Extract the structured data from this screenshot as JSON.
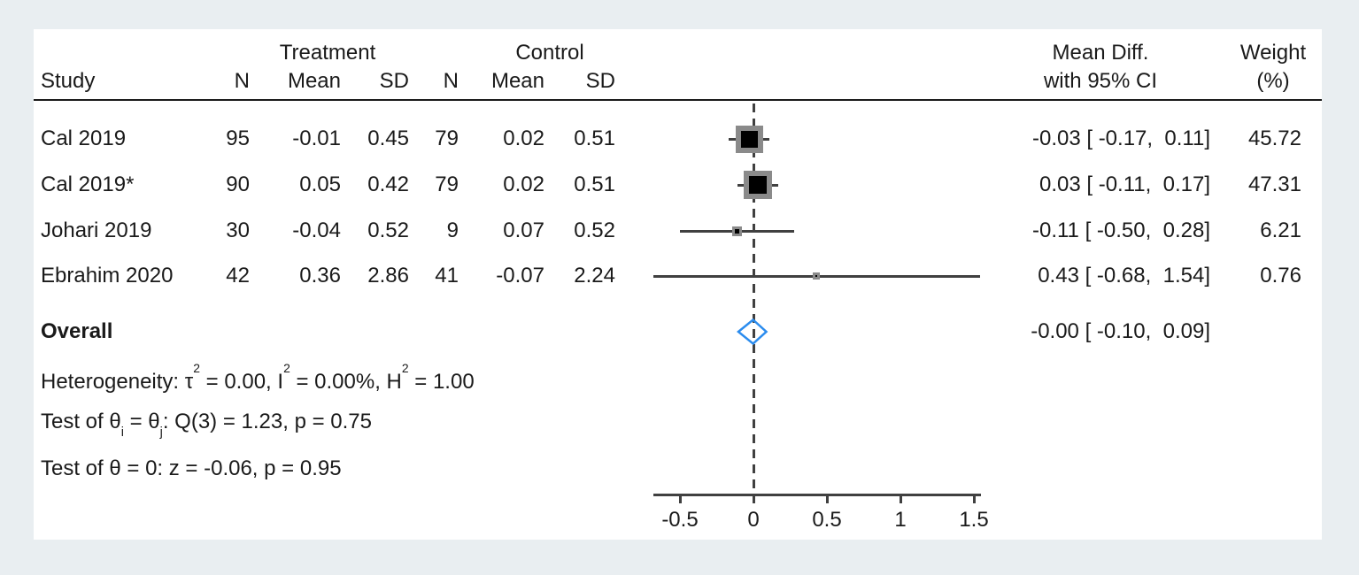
{
  "colors": {
    "background": "#e9eef1",
    "panel": "#ffffff",
    "text": "#1a1a1a",
    "line": "#404040",
    "marker": "#8a8a8a",
    "marker_core": "#000000",
    "diamond": "#2b8cee"
  },
  "header": {
    "study": "Study",
    "treatment": "Treatment",
    "control": "Control",
    "col_n": "N",
    "col_mean": "Mean",
    "col_sd": "SD",
    "effect_l1": "Mean Diff.",
    "effect_l2": "with 95% CI",
    "weight_l1": "Weight",
    "weight_l2": "(%)"
  },
  "stats": {
    "het_p1": "Heterogeneity: τ",
    "het_s1": "2",
    "het_p2": " = 0.00, I",
    "het_s2": "2",
    "het_p3": " = 0.00%, H",
    "het_s3": "2",
    "het_p4": " = 1.00",
    "t1_p1": "Test of θ",
    "t1_s1": "i",
    "t1_p2": " = θ",
    "t1_s2": "j",
    "t1_p3": ": Q(3) = 1.23, p = 0.75",
    "t2": "Test of θ = 0: z = -0.06, p = 0.95"
  },
  "chart_data": {
    "type": "forest",
    "effect_label": "Mean Diff.",
    "x_axis": {
      "ticks": [
        -0.5,
        0,
        0.5,
        1,
        1.5
      ],
      "tick_labels": [
        "-0.5",
        "0",
        "0.5",
        "1",
        "1.5"
      ],
      "range": [
        -0.68,
        1.55
      ],
      "ref_line": 0
    },
    "studies": [
      {
        "name": "Cal 2019",
        "t_n": "95",
        "t_mean": "-0.01",
        "t_sd": "0.45",
        "c_n": "79",
        "c_mean": "0.02",
        "c_sd": "0.51",
        "effect": -0.03,
        "ci": [
          -0.17,
          0.11
        ],
        "ci_text": "-0.03 [ -0.17,  0.11]",
        "weight": 45.72,
        "weight_text": "45.72"
      },
      {
        "name": "Cal 2019*",
        "t_n": "90",
        "t_mean": "0.05",
        "t_sd": "0.42",
        "c_n": "79",
        "c_mean": "0.02",
        "c_sd": "0.51",
        "effect": 0.03,
        "ci": [
          -0.11,
          0.17
        ],
        "ci_text": " 0.03 [ -0.11,  0.17]",
        "weight": 47.31,
        "weight_text": "47.31"
      },
      {
        "name": "Johari 2019",
        "t_n": "30",
        "t_mean": "-0.04",
        "t_sd": "0.52",
        "c_n": "9",
        "c_mean": "0.07",
        "c_sd": "0.52",
        "effect": -0.11,
        "ci": [
          -0.5,
          0.28
        ],
        "ci_text": "-0.11 [ -0.50,  0.28]",
        "weight": 6.21,
        "weight_text": "6.21"
      },
      {
        "name": "Ebrahim 2020",
        "t_n": "42",
        "t_mean": "0.36",
        "t_sd": "2.86",
        "c_n": "41",
        "c_mean": "-0.07",
        "c_sd": "2.24",
        "effect": 0.43,
        "ci": [
          -0.68,
          1.54
        ],
        "ci_text": " 0.43 [ -0.68,  1.54]",
        "weight": 0.76,
        "weight_text": "0.76"
      }
    ],
    "overall": {
      "label": "Overall",
      "effect": -0.0,
      "ci": [
        -0.1,
        0.09
      ],
      "ci_text": "-0.00 [ -0.10,  0.09]"
    },
    "heterogeneity": {
      "tau2": 0.0,
      "I2_pct": 0.0,
      "H2": 1.0
    },
    "test_homogeneity": {
      "df": 3,
      "Q": 1.23,
      "p": 0.75
    },
    "test_overall": {
      "z": -0.06,
      "p": 0.95
    }
  }
}
